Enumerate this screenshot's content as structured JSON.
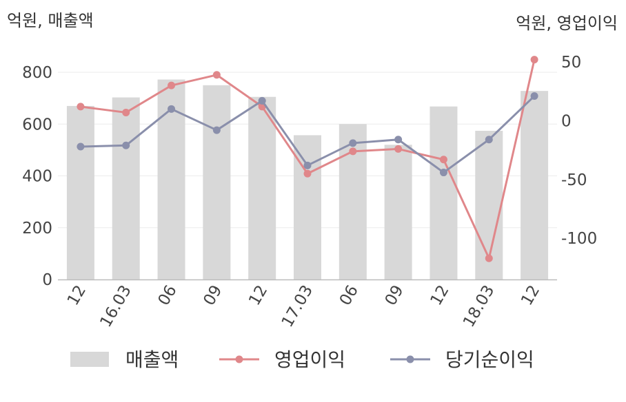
{
  "chart_data": {
    "type": "bar",
    "left_axis_unit": "억원, 매출액",
    "right_axis_unit": "억원, 영업이익",
    "categories": [
      "12",
      "16.03",
      "06",
      "09",
      "12",
      "17.03",
      "06",
      "09",
      "12",
      "18.03",
      "12"
    ],
    "left_axis": {
      "ticks": [
        "0",
        "200",
        "400",
        "600",
        "800"
      ],
      "range": [
        0,
        800
      ]
    },
    "right_axis": {
      "ticks": [
        "-100",
        "-50",
        "0",
        "50"
      ],
      "range": [
        -135,
        50
      ]
    },
    "grid": "horizontal",
    "legend_position": "bottom",
    "series": [
      {
        "name": "매출액",
        "kind": "bar",
        "axis": "left",
        "color": "#d8d8d8",
        "values": [
          670,
          703,
          772,
          750,
          705,
          557,
          600,
          520,
          668,
          574,
          728
        ]
      },
      {
        "name": "영업이익",
        "kind": "line",
        "axis": "right",
        "color": "#e0878a",
        "values": [
          12,
          7,
          30,
          39,
          12,
          -45,
          -26,
          -24,
          -33,
          -117,
          52
        ]
      },
      {
        "name": "당기순이익",
        "kind": "line",
        "axis": "right",
        "color": "#8a8fab",
        "values": [
          -22,
          -21,
          10,
          -8,
          17,
          -38,
          -19,
          -16,
          -44,
          -16,
          21
        ]
      }
    ]
  }
}
